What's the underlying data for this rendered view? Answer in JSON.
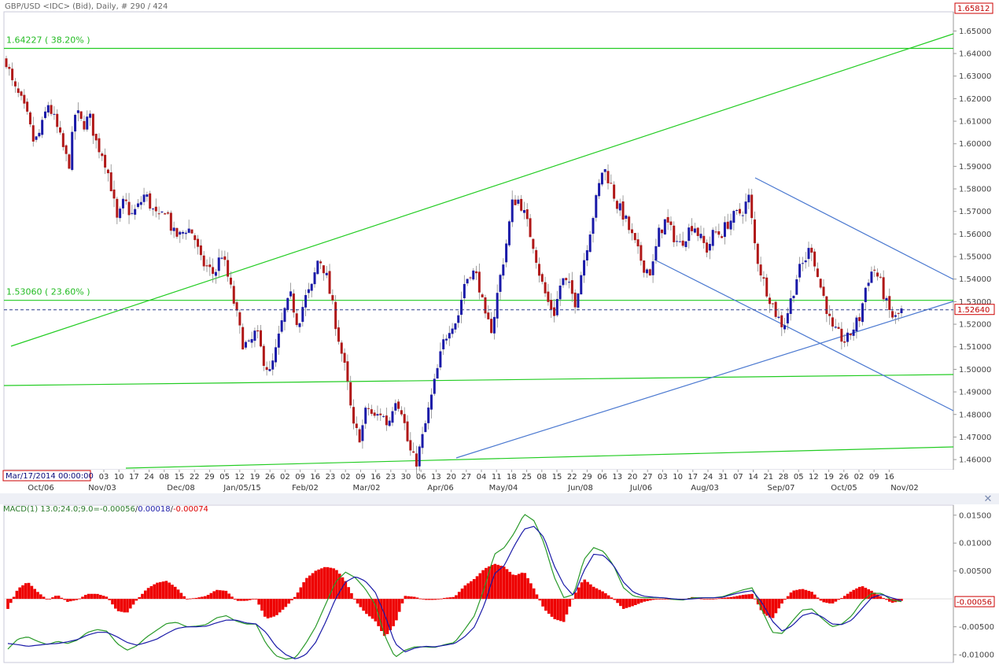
{
  "header": {
    "title": "GBP/USD <IDC> (Bid), Daily, # 290 / 424",
    "last_price_box": "1.65812",
    "current_price_box": "1.52640",
    "crosshair_date": "Mar/17/2014 00:00:00"
  },
  "fib_labels": {
    "level_382": "1.64227 ( 38.20% )",
    "level_236": "1.53060 ( 23.60% )"
  },
  "macd": {
    "label_name": "MACD(1) 13.0;24.0;9.0=",
    "label_macd": "-0.00056",
    "label_signal": "0.00018",
    "label_hist": "-0.00074",
    "current_value_box": "-0.00056"
  },
  "colors": {
    "bull": "#1a1aa8",
    "bear": "#b01818",
    "green": "#22cc22",
    "blue_trend": "#4a78d0",
    "macd_line": "#2a9a2a",
    "signal_line": "#1a1aa8",
    "hist": "#ee0000",
    "price_box_border": "#cc0000"
  },
  "chart_data": [
    {
      "type": "candlestick",
      "title": "GBP/USD <IDC> (Bid), Daily",
      "x_axis_day_labels": [
        "03",
        "10",
        "17",
        "24",
        "08",
        "15",
        "22",
        "29",
        "05",
        "12",
        "19",
        "26",
        "02",
        "09",
        "16",
        "23",
        "02",
        "09",
        "16",
        "23",
        "30",
        "06",
        "13",
        "20",
        "27",
        "04",
        "11",
        "18",
        "25",
        "08",
        "15",
        "22",
        "29",
        "06",
        "13",
        "20",
        "27",
        "03",
        "10",
        "17",
        "24",
        "31",
        "07",
        "14",
        "21",
        "28",
        "05",
        "12",
        "19",
        "26",
        "02",
        "09",
        "16"
      ],
      "x_axis_month_labels": [
        "Oct/06",
        "Nov/03",
        "Dec/08",
        "Jan/05/15",
        "Feb/02",
        "Mar/02",
        "Apr/06",
        "May/04",
        "Jun/08",
        "Jul/06",
        "Aug/03",
        "Sep/07",
        "Oct/05",
        "Nov/02"
      ],
      "y_tick_labels": [
        "1.65000",
        "1.64000",
        "1.63000",
        "1.62000",
        "1.61000",
        "1.60000",
        "1.59000",
        "1.58000",
        "1.57000",
        "1.56000",
        "1.55000",
        "1.54000",
        "1.53000",
        "1.52000",
        "1.51000",
        "1.50000",
        "1.49000",
        "1.48000",
        "1.47000",
        "1.46000"
      ],
      "ylim": [
        1.4555,
        1.6585
      ],
      "close_path": [
        1.637,
        1.625,
        1.62,
        1.612,
        1.6,
        1.606,
        1.618,
        1.61,
        1.6,
        1.59,
        1.615,
        1.608,
        1.612,
        1.6,
        1.595,
        1.583,
        1.565,
        1.575,
        1.568,
        1.572,
        1.578,
        1.571,
        1.566,
        1.572,
        1.56,
        1.559,
        1.563,
        1.56,
        1.548,
        1.545,
        1.542,
        1.552,
        1.54,
        1.527,
        1.512,
        1.51,
        1.517,
        1.505,
        1.498,
        1.51,
        1.525,
        1.532,
        1.52,
        1.531,
        1.536,
        1.55,
        1.543,
        1.528,
        1.512,
        1.497,
        1.474,
        1.47,
        1.484,
        1.478,
        1.481,
        1.475,
        1.488,
        1.482,
        1.465,
        1.458,
        1.47,
        1.484,
        1.498,
        1.512,
        1.52,
        1.522,
        1.538,
        1.544,
        1.54,
        1.522,
        1.518,
        1.538,
        1.555,
        1.575,
        1.575,
        1.565,
        1.555,
        1.54,
        1.53,
        1.525,
        1.54,
        1.537,
        1.53,
        1.545,
        1.56,
        1.575,
        1.59,
        1.583,
        1.573,
        1.568,
        1.56,
        1.552,
        1.545,
        1.543,
        1.56,
        1.566,
        1.56,
        1.555,
        1.56,
        1.565,
        1.558,
        1.553,
        1.561,
        1.56,
        1.565,
        1.568,
        1.57,
        1.576,
        1.552,
        1.54,
        1.532,
        1.524,
        1.519,
        1.53,
        1.542,
        1.548,
        1.555,
        1.54,
        1.53,
        1.517,
        1.515,
        1.512,
        1.518,
        1.523,
        1.539,
        1.545,
        1.538,
        1.527,
        1.522,
        1.526
      ],
      "series": [
        {
          "name": "1.64227 ( 38.20% )",
          "type": "hline",
          "value": 1.64227
        },
        {
          "name": "1.53060 ( 23.60% )",
          "type": "hline",
          "value": 1.5306
        },
        {
          "name": "current price",
          "type": "hline-dashed",
          "value": 1.5264
        }
      ]
    },
    {
      "type": "macd",
      "title": "MACD(1) 13.0;24.0;9.0",
      "y_tick_labels": [
        "0.01500",
        "0.01000",
        "0.00500",
        "-0.00500",
        "-0.01000"
      ],
      "ylim": [
        -0.0114,
        0.0168
      ],
      "macd_path": [
        -0.009,
        -0.0072,
        -0.0068,
        -0.0076,
        -0.0082,
        -0.0076,
        -0.008,
        -0.0074,
        -0.006,
        -0.0055,
        -0.0058,
        -0.008,
        -0.0092,
        -0.0084,
        -0.0068,
        -0.0056,
        -0.0044,
        -0.0042,
        -0.005,
        -0.0049,
        -0.0046,
        -0.0034,
        -0.003,
        -0.004,
        -0.0045,
        -0.0045,
        -0.008,
        -0.0102,
        -0.0108,
        -0.0105,
        -0.008,
        -0.005,
        -0.001,
        0.003,
        0.0048,
        0.0038,
        0.0018,
        -0.001,
        -0.0068,
        -0.0105,
        -0.0092,
        -0.0086,
        -0.0086,
        -0.0087,
        -0.0082,
        -0.0078,
        -0.0055,
        -0.003,
        0.002,
        0.008,
        0.0092,
        0.0118,
        0.0152,
        0.014,
        0.01,
        0.004,
        0.0002,
        0.0008,
        0.007,
        0.0092,
        0.0085,
        0.006,
        0.002,
        0.0005,
        0.0002,
        0.0002,
        0.0002,
        -0.0001,
        -0.0002,
        0.0002,
        0.0002,
        0.0002,
        0.0004,
        0.001,
        0.0016,
        0.002,
        -0.0022,
        -0.006,
        -0.0062,
        -0.004,
        -0.002,
        -0.0018,
        -0.0035,
        -0.005,
        -0.0045,
        -0.003,
        -0.0005,
        0.001,
        0.001,
        -0.0002,
        -0.0005
      ],
      "signal_path": [
        -0.008,
        -0.0082,
        -0.0085,
        -0.0083,
        -0.0081,
        -0.008,
        -0.0077,
        -0.0073,
        -0.0065,
        -0.006,
        -0.006,
        -0.0068,
        -0.0078,
        -0.0083,
        -0.0078,
        -0.0072,
        -0.0062,
        -0.0053,
        -0.005,
        -0.005,
        -0.0049,
        -0.0043,
        -0.0038,
        -0.0038,
        -0.0043,
        -0.0045,
        -0.006,
        -0.0085,
        -0.01,
        -0.0108,
        -0.01,
        -0.0078,
        -0.0042,
        0.0,
        0.003,
        0.004,
        0.0032,
        0.0012,
        -0.003,
        -0.008,
        -0.0095,
        -0.0088,
        -0.0085,
        -0.0086,
        -0.0083,
        -0.008,
        -0.0068,
        -0.005,
        -0.001,
        0.0045,
        0.006,
        0.0095,
        0.0125,
        0.013,
        0.011,
        0.006,
        0.0025,
        0.0005,
        0.005,
        0.008,
        0.0078,
        0.006,
        0.003,
        0.0012,
        0.0005,
        0.0003,
        0.0002,
        0.0,
        -0.0001,
        0.0,
        0.0002,
        0.0002,
        0.0003,
        0.0008,
        0.0012,
        0.0015,
        -0.0008,
        -0.004,
        -0.0058,
        -0.0048,
        -0.003,
        -0.0025,
        -0.0032,
        -0.0045,
        -0.0046,
        -0.0038,
        -0.0018,
        0.0002,
        0.0008,
        0.0002,
        -0.0003
      ]
    }
  ]
}
